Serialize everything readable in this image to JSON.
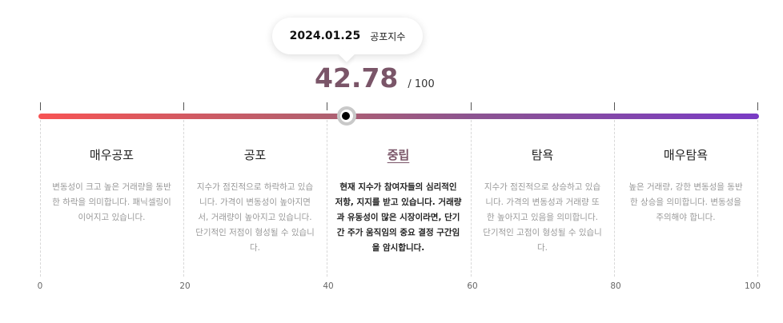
{
  "tooltip": {
    "date": "2024.01.25",
    "label": "공포지수"
  },
  "score": {
    "value": "42.78",
    "max": "/ 100"
  },
  "zones": [
    {
      "title": "매우공포",
      "description": "변동성이 크고 높은 거래량을 동반한 하락을 의미합니다. 패닉셀링이 이어지고 있습니다."
    },
    {
      "title": "공포",
      "description": "지수가 점진적으로 하락하고 있습니다. 가격이 변동성이 높아지면서, 거래량이 높아지고 있습니다. 단기적인 저점이 형성될 수 있습니다."
    },
    {
      "title": "중립",
      "description": "현재 지수가 참여자들의 심리적인 저항, 지지를 받고 있습니다. 거래량과 유동성이 많은 시장이라면, 단기간 주가 움직임의 중요 결정 구간임을 암시합니다."
    },
    {
      "title": "탐욕",
      "description": "지수가 점진적으로 상승하고 있습니다. 가격의 변동성과 거래량 또한 높아지고 있음을 의미합니다. 단기적인 고점이 형성될 수 있습니다."
    },
    {
      "title": "매우탐욕",
      "description": "높은 거래량, 강한 변동성을 동반한 상승을 의미합니다. 변동성을 주의해야 합니다."
    }
  ],
  "axis": [
    "0",
    "20",
    "40",
    "60",
    "80",
    "100"
  ],
  "colors": {
    "accent": "#7a5568",
    "gradient_start": "#f75353",
    "gradient_end": "#7a3bc5"
  }
}
